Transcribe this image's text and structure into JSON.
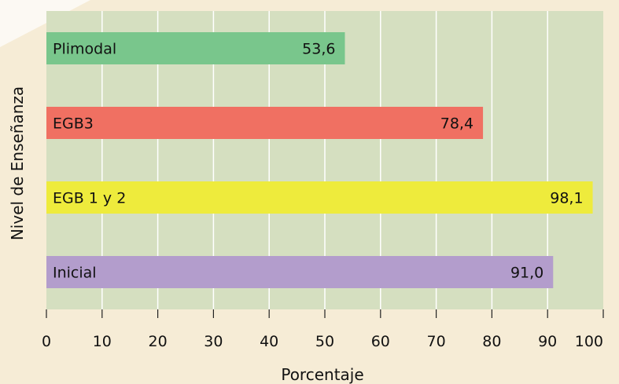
{
  "chart_data": {
    "type": "bar",
    "orientation": "horizontal",
    "title": "",
    "xlabel": "Porcentaje",
    "ylabel": "Nivel de Enseñanza",
    "xlim": [
      0,
      100
    ],
    "x_ticks": [
      "0",
      "10",
      "20",
      "30",
      "40",
      "50",
      "60",
      "70",
      "80",
      "90",
      "100"
    ],
    "grid": true,
    "categories": [
      "Plimodal",
      "EGB3",
      "EGB 1 y 2",
      "Inicial"
    ],
    "values": [
      53.6,
      78.4,
      98.1,
      91.0
    ],
    "value_labels": [
      "53,6",
      "78,4",
      "98,1",
      "91,0"
    ],
    "colors": [
      "#79c68c",
      "#f07062",
      "#eeeb3c",
      "#b39dcc"
    ],
    "plot_background": "#d5dfc0"
  }
}
